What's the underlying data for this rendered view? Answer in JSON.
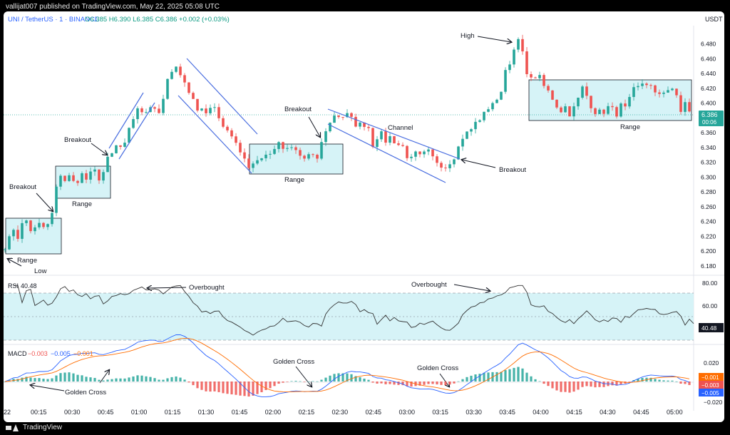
{
  "header": {
    "published": "vallijat007 published on TradingView.com, May 22, 2025 05:08 UTC",
    "symbol": "UNI / TetherUS · 1 · BINANCE",
    "ohlc": "O6.385 H6.390 L6.385 C6.386 +0.002 (+0.03%)",
    "currency": "USDT"
  },
  "footer": {
    "brand": "TradingView"
  },
  "price_tag": {
    "value": "6.386",
    "countdown": "00:06"
  },
  "rsi": {
    "label": "RSI",
    "value": "40.48"
  },
  "macd": {
    "label": "MACD",
    "v1": "−0.003",
    "v2": "−0.005",
    "v3": "−0.001",
    "tag_orange": "−0.001",
    "tag_red": "−0.003",
    "tag_blue": "−0.005"
  },
  "annotations": {
    "breakout1": "Breakout",
    "range1": "Range",
    "low": "Low",
    "breakout2": "Breakout",
    "range2": "Range",
    "breakout3": "Breakout",
    "range3": "Range",
    "breakout4": "Breakout",
    "channel": "Channel",
    "breakout5": "Breakout",
    "high": "High",
    "range4": "Range",
    "overbought1": "Overbought",
    "overbought2": "Overbought",
    "golden1": "Golden Cross",
    "golden2": "Golden Cross",
    "golden3": "Golden Cross"
  },
  "colors": {
    "up": "#26a69a",
    "down": "#ef5350",
    "box_fill": "#d6f3f7",
    "channel_line": "#4a6ee0",
    "macd_line": "#2962ff",
    "signal_line": "#ff6d00",
    "rsi_line": "#333333"
  },
  "chart_data": {
    "type": "candlestick",
    "price_axis": {
      "ticks": [
        "6.480",
        "6.460",
        "6.440",
        "6.420",
        "6.400",
        "6.380",
        "6.360",
        "6.340",
        "6.320",
        "6.300",
        "6.280",
        "6.260",
        "6.240",
        "6.220",
        "6.200",
        "6.180"
      ],
      "ylim": [
        6.175,
        6.5
      ]
    },
    "time_axis": {
      "ticks": [
        "00:15",
        "00:30",
        "00:45",
        "01:00",
        "01:15",
        "01:30",
        "01:45",
        "02:00",
        "02:15",
        "02:30",
        "02:45",
        "03:00",
        "03:15",
        "03:30",
        "03:45",
        "04:00",
        "04:15",
        "04:30",
        "04:45",
        "05:00"
      ],
      "first_partial": "22"
    },
    "close_path": [
      [
        0,
        6.21
      ],
      [
        6,
        6.205
      ],
      [
        12,
        6.235
      ],
      [
        20,
        6.22
      ],
      [
        30,
        6.245
      ],
      [
        40,
        6.225
      ],
      [
        50,
        6.235
      ],
      [
        60,
        6.23
      ],
      [
        67,
        6.245
      ],
      [
        72,
        6.27
      ],
      [
        78,
        6.31
      ],
      [
        84,
        6.295
      ],
      [
        92,
        6.3
      ],
      [
        100,
        6.29
      ],
      [
        108,
        6.305
      ],
      [
        118,
        6.295
      ],
      [
        126,
        6.31
      ],
      [
        132,
        6.3
      ],
      [
        138,
        6.3
      ],
      [
        144,
        6.32
      ],
      [
        152,
        6.33
      ],
      [
        160,
        6.345
      ],
      [
        168,
        6.335
      ],
      [
        174,
        6.355
      ],
      [
        180,
        6.375
      ],
      [
        188,
        6.395
      ],
      [
        196,
        6.38
      ],
      [
        204,
        6.4
      ],
      [
        212,
        6.395
      ],
      [
        220,
        6.385
      ],
      [
        226,
        6.42
      ],
      [
        234,
        6.435
      ],
      [
        240,
        6.455
      ],
      [
        246,
        6.43
      ],
      [
        252,
        6.44
      ],
      [
        258,
        6.42
      ],
      [
        264,
        6.41
      ],
      [
        272,
        6.39
      ],
      [
        280,
        6.395
      ],
      [
        288,
        6.385
      ],
      [
        296,
        6.4
      ],
      [
        304,
        6.375
      ],
      [
        312,
        6.365
      ],
      [
        320,
        6.35
      ],
      [
        328,
        6.345
      ],
      [
        336,
        6.33
      ],
      [
        344,
        6.315
      ],
      [
        350,
        6.32
      ],
      [
        358,
        6.325
      ],
      [
        366,
        6.33
      ],
      [
        374,
        6.33
      ],
      [
        382,
        6.345
      ],
      [
        390,
        6.34
      ],
      [
        398,
        6.335
      ],
      [
        406,
        6.34
      ],
      [
        414,
        6.33
      ],
      [
        422,
        6.325
      ],
      [
        430,
        6.33
      ],
      [
        438,
        6.32
      ],
      [
        446,
        6.345
      ],
      [
        452,
        6.365
      ],
      [
        460,
        6.375
      ],
      [
        466,
        6.39
      ],
      [
        472,
        6.38
      ],
      [
        480,
        6.385
      ],
      [
        490,
        6.375
      ],
      [
        500,
        6.37
      ],
      [
        510,
        6.375
      ],
      [
        518,
        6.345
      ],
      [
        526,
        6.36
      ],
      [
        536,
        6.35
      ],
      [
        544,
        6.355
      ],
      [
        552,
        6.345
      ],
      [
        562,
        6.34
      ],
      [
        570,
        6.32
      ],
      [
        578,
        6.33
      ],
      [
        586,
        6.325
      ],
      [
        594,
        6.335
      ],
      [
        602,
        6.325
      ],
      [
        612,
        6.32
      ],
      [
        620,
        6.315
      ],
      [
        628,
        6.325
      ],
      [
        636,
        6.335
      ],
      [
        644,
        6.355
      ],
      [
        652,
        6.36
      ],
      [
        660,
        6.37
      ],
      [
        668,
        6.38
      ],
      [
        676,
        6.385
      ],
      [
        684,
        6.405
      ],
      [
        690,
        6.395
      ],
      [
        696,
        6.41
      ],
      [
        702,
        6.44
      ],
      [
        708,
        6.455
      ],
      [
        714,
        6.465
      ],
      [
        718,
        6.47
      ],
      [
        722,
        6.485
      ],
      [
        728,
        6.465
      ],
      [
        734,
        6.445
      ],
      [
        740,
        6.43
      ],
      [
        748,
        6.44
      ],
      [
        756,
        6.425
      ],
      [
        764,
        6.415
      ],
      [
        772,
        6.405
      ],
      [
        780,
        6.39
      ],
      [
        788,
        6.395
      ],
      [
        796,
        6.385
      ],
      [
        804,
        6.4
      ],
      [
        812,
        6.42
      ],
      [
        818,
        6.41
      ],
      [
        826,
        6.395
      ],
      [
        834,
        6.385
      ],
      [
        842,
        6.39
      ],
      [
        850,
        6.395
      ],
      [
        858,
        6.385
      ],
      [
        866,
        6.395
      ],
      [
        874,
        6.39
      ],
      [
        882,
        6.415
      ],
      [
        890,
        6.42
      ],
      [
        898,
        6.43
      ],
      [
        906,
        6.425
      ],
      [
        914,
        6.41
      ],
      [
        922,
        6.415
      ],
      [
        930,
        6.42
      ],
      [
        938,
        6.415
      ],
      [
        944,
        6.41
      ],
      [
        950,
        6.39
      ],
      [
        956,
        6.4
      ],
      [
        962,
        6.386
      ]
    ],
    "rsi": {
      "ylim": [
        10,
        90
      ],
      "ticks": [
        "80.00",
        "60.00"
      ],
      "overbought": 70,
      "oversold": 30,
      "last": 40.48
    },
    "macd": {
      "ticks": [
        "0.020",
        "0.000",
        "−0.020"
      ],
      "ylim": [
        -0.024,
        0.024
      ]
    }
  }
}
